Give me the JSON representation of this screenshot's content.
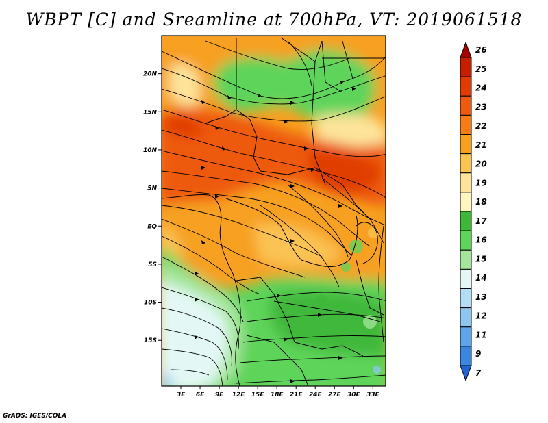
{
  "title": "WBPT [C] and Sreamline at 700hPa, VT: 2019061518",
  "credit": "GrADS: IGES/COLA",
  "map": {
    "lon_range": [
      0,
      35
    ],
    "lat_range": [
      -21,
      25
    ],
    "lat_ticks": [
      {
        "lat": 20,
        "label": "20N"
      },
      {
        "lat": 15,
        "label": "15N"
      },
      {
        "lat": 10,
        "label": "10N"
      },
      {
        "lat": 5,
        "label": "5N"
      },
      {
        "lat": 0,
        "label": "EQ"
      },
      {
        "lat": -5,
        "label": "5S"
      },
      {
        "lat": -10,
        "label": "10S"
      },
      {
        "lat": -15,
        "label": "15S"
      }
    ],
    "lon_ticks": [
      {
        "lon": 3,
        "label": "3E"
      },
      {
        "lon": 6,
        "label": "6E"
      },
      {
        "lon": 9,
        "label": "9E"
      },
      {
        "lon": 12,
        "label": "12E"
      },
      {
        "lon": 15,
        "label": "15E"
      },
      {
        "lon": 18,
        "label": "18E"
      },
      {
        "lon": 21,
        "label": "21E"
      },
      {
        "lon": 24,
        "label": "24E"
      },
      {
        "lon": 27,
        "label": "27E"
      },
      {
        "lon": 30,
        "label": "30E"
      },
      {
        "lon": 33,
        "label": "33E"
      }
    ]
  },
  "colorbar": {
    "levels": [
      "26",
      "25",
      "24",
      "23",
      "22",
      "21",
      "20",
      "19",
      "18",
      "17",
      "16",
      "15",
      "14",
      "13",
      "12",
      "11",
      "9",
      "7"
    ],
    "colors": [
      "#a50000",
      "#c81e00",
      "#e03c00",
      "#ee5a10",
      "#f57d14",
      "#f7a020",
      "#fac352",
      "#fde49a",
      "#fff6bf",
      "#3fb83a",
      "#5fd45a",
      "#a6e69c",
      "#e3f8f5",
      "#b3ddf5",
      "#8ec6f0",
      "#5ea6ea",
      "#3a86e0",
      "#1f64d0"
    ]
  }
}
